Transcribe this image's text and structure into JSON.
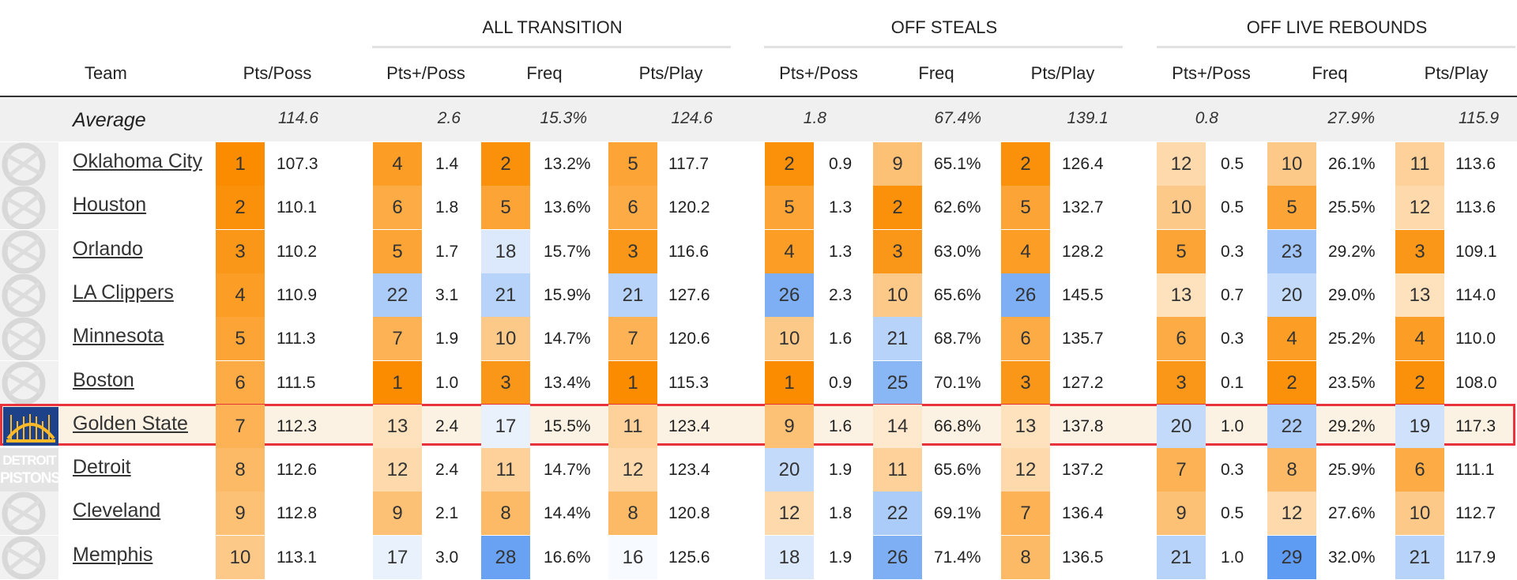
{
  "table": {
    "team_header": "Team",
    "groups": [
      {
        "label": "",
        "columns": [
          "Pts/Poss"
        ]
      },
      {
        "label": "ALL TRANSITION",
        "columns": [
          "Pts+/Poss",
          "Freq",
          "Pts/Play"
        ]
      },
      {
        "label": "OFF STEALS",
        "columns": [
          "Pts+/Poss",
          "Freq",
          "Pts/Play"
        ]
      },
      {
        "label": "OFF LIVE REBOUNDS",
        "columns": [
          "Pts+/Poss",
          "Freq",
          "Pts/Play"
        ]
      }
    ],
    "average": {
      "label": "Average",
      "values": [
        "114.6",
        "2.6",
        "15.3%",
        "124.6",
        "1.8",
        "67.4%",
        "139.1",
        "0.8",
        "27.9%",
        "115.9"
      ]
    },
    "highlighted_team": "Golden State",
    "highlight_color": "#e8323c",
    "rows": [
      {
        "team": "Oklahoma City",
        "logo": "thunder-logo-icon",
        "cells": [
          {
            "rank": 1,
            "value": "107.3"
          },
          {
            "rank": 4,
            "value": "1.4"
          },
          {
            "rank": 2,
            "value": "13.2%"
          },
          {
            "rank": 5,
            "value": "117.7"
          },
          {
            "rank": 2,
            "value": "0.9"
          },
          {
            "rank": 9,
            "value": "65.1%"
          },
          {
            "rank": 2,
            "value": "126.4"
          },
          {
            "rank": 12,
            "value": "0.5"
          },
          {
            "rank": 10,
            "value": "26.1%"
          },
          {
            "rank": 11,
            "value": "113.6"
          }
        ]
      },
      {
        "team": "Houston",
        "logo": "rockets-logo-icon",
        "cells": [
          {
            "rank": 2,
            "value": "110.1"
          },
          {
            "rank": 6,
            "value": "1.8"
          },
          {
            "rank": 5,
            "value": "13.6%"
          },
          {
            "rank": 6,
            "value": "120.2"
          },
          {
            "rank": 5,
            "value": "1.3"
          },
          {
            "rank": 2,
            "value": "62.6%"
          },
          {
            "rank": 5,
            "value": "132.7"
          },
          {
            "rank": 10,
            "value": "0.5"
          },
          {
            "rank": 5,
            "value": "25.5%"
          },
          {
            "rank": 12,
            "value": "113.6"
          }
        ]
      },
      {
        "team": "Orlando",
        "logo": "magic-logo-icon",
        "cells": [
          {
            "rank": 3,
            "value": "110.2"
          },
          {
            "rank": 5,
            "value": "1.7"
          },
          {
            "rank": 18,
            "value": "15.7%"
          },
          {
            "rank": 3,
            "value": "116.6"
          },
          {
            "rank": 4,
            "value": "1.3"
          },
          {
            "rank": 3,
            "value": "63.0%"
          },
          {
            "rank": 4,
            "value": "128.2"
          },
          {
            "rank": 5,
            "value": "0.3"
          },
          {
            "rank": 23,
            "value": "29.2%"
          },
          {
            "rank": 3,
            "value": "109.1"
          }
        ]
      },
      {
        "team": "LA Clippers",
        "logo": "clippers-logo-icon",
        "cells": [
          {
            "rank": 4,
            "value": "110.9"
          },
          {
            "rank": 22,
            "value": "3.1"
          },
          {
            "rank": 21,
            "value": "15.9%"
          },
          {
            "rank": 21,
            "value": "127.6"
          },
          {
            "rank": 26,
            "value": "2.3"
          },
          {
            "rank": 10,
            "value": "65.6%"
          },
          {
            "rank": 26,
            "value": "145.5"
          },
          {
            "rank": 13,
            "value": "0.7"
          },
          {
            "rank": 20,
            "value": "29.0%"
          },
          {
            "rank": 13,
            "value": "114.0"
          }
        ]
      },
      {
        "team": "Minnesota",
        "logo": "timberwolves-logo-icon",
        "cells": [
          {
            "rank": 5,
            "value": "111.3"
          },
          {
            "rank": 7,
            "value": "1.9"
          },
          {
            "rank": 10,
            "value": "14.7%"
          },
          {
            "rank": 7,
            "value": "120.6"
          },
          {
            "rank": 10,
            "value": "1.6"
          },
          {
            "rank": 21,
            "value": "68.7%"
          },
          {
            "rank": 6,
            "value": "135.7"
          },
          {
            "rank": 6,
            "value": "0.3"
          },
          {
            "rank": 4,
            "value": "25.2%"
          },
          {
            "rank": 4,
            "value": "110.0"
          }
        ]
      },
      {
        "team": "Boston",
        "logo": "celtics-logo-icon",
        "cells": [
          {
            "rank": 6,
            "value": "111.5"
          },
          {
            "rank": 1,
            "value": "1.0"
          },
          {
            "rank": 3,
            "value": "13.4%"
          },
          {
            "rank": 1,
            "value": "115.3"
          },
          {
            "rank": 1,
            "value": "0.9"
          },
          {
            "rank": 25,
            "value": "70.1%"
          },
          {
            "rank": 3,
            "value": "127.2"
          },
          {
            "rank": 3,
            "value": "0.1"
          },
          {
            "rank": 2,
            "value": "23.5%"
          },
          {
            "rank": 2,
            "value": "108.0"
          }
        ]
      },
      {
        "team": "Golden State",
        "logo": "warriors-logo-icon",
        "cells": [
          {
            "rank": 7,
            "value": "112.3"
          },
          {
            "rank": 13,
            "value": "2.4"
          },
          {
            "rank": 17,
            "value": "15.5%"
          },
          {
            "rank": 11,
            "value": "123.4"
          },
          {
            "rank": 9,
            "value": "1.6"
          },
          {
            "rank": 14,
            "value": "66.8%"
          },
          {
            "rank": 13,
            "value": "137.8"
          },
          {
            "rank": 20,
            "value": "1.0"
          },
          {
            "rank": 22,
            "value": "29.2%"
          },
          {
            "rank": 19,
            "value": "117.3"
          }
        ]
      },
      {
        "team": "Detroit",
        "logo": "pistons-logo-icon",
        "logo_text": [
          "DETROIT",
          "PISTONS"
        ],
        "cells": [
          {
            "rank": 8,
            "value": "112.6"
          },
          {
            "rank": 12,
            "value": "2.4"
          },
          {
            "rank": 11,
            "value": "14.7%"
          },
          {
            "rank": 12,
            "value": "123.4"
          },
          {
            "rank": 20,
            "value": "1.9"
          },
          {
            "rank": 11,
            "value": "65.6%"
          },
          {
            "rank": 12,
            "value": "137.2"
          },
          {
            "rank": 7,
            "value": "0.3"
          },
          {
            "rank": 8,
            "value": "25.9%"
          },
          {
            "rank": 6,
            "value": "111.1"
          }
        ]
      },
      {
        "team": "Cleveland",
        "logo": "cavaliers-logo-icon",
        "cells": [
          {
            "rank": 9,
            "value": "112.8"
          },
          {
            "rank": 9,
            "value": "2.1"
          },
          {
            "rank": 8,
            "value": "14.4%"
          },
          {
            "rank": 8,
            "value": "120.8"
          },
          {
            "rank": 12,
            "value": "1.8"
          },
          {
            "rank": 22,
            "value": "69.1%"
          },
          {
            "rank": 7,
            "value": "136.4"
          },
          {
            "rank": 9,
            "value": "0.5"
          },
          {
            "rank": 12,
            "value": "27.6%"
          },
          {
            "rank": 10,
            "value": "112.7"
          }
        ]
      },
      {
        "team": "Memphis",
        "logo": "grizzlies-logo-icon",
        "cells": [
          {
            "rank": 10,
            "value": "113.1"
          },
          {
            "rank": 17,
            "value": "3.0"
          },
          {
            "rank": 28,
            "value": "16.6%"
          },
          {
            "rank": 16,
            "value": "125.6"
          },
          {
            "rank": 18,
            "value": "1.9"
          },
          {
            "rank": 26,
            "value": "71.4%"
          },
          {
            "rank": 8,
            "value": "136.5"
          },
          {
            "rank": 21,
            "value": "1.0"
          },
          {
            "rank": 29,
            "value": "32.0%"
          },
          {
            "rank": 21,
            "value": "117.9"
          }
        ]
      }
    ]
  },
  "colors": {
    "rank_good": "#fb8c00",
    "rank_mid": "#ffffff",
    "rank_bad": "#4a8ff0"
  }
}
